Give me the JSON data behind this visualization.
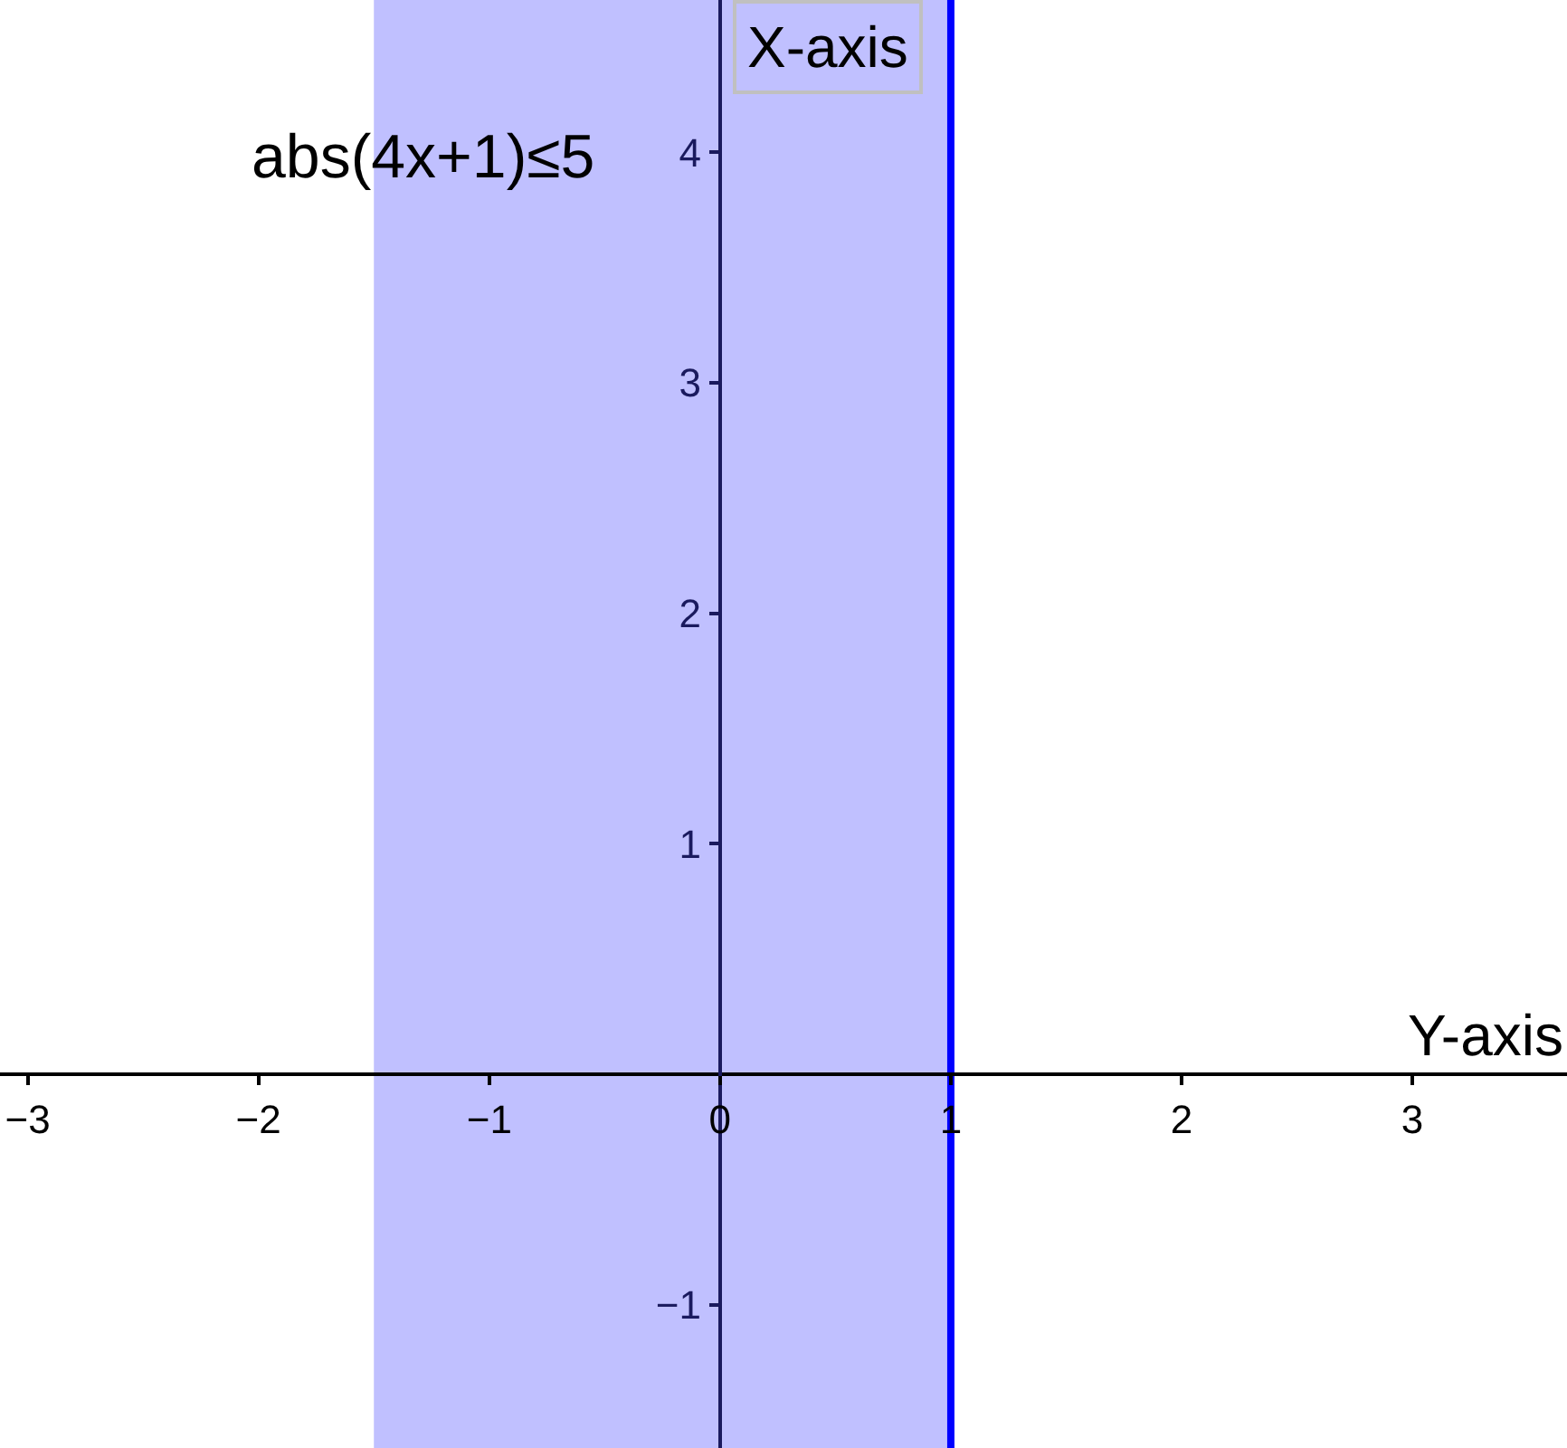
{
  "chart_data": {
    "type": "line",
    "xlabel": "Y-axis",
    "ylabel": "X-axis",
    "xlim": [
      -3.12,
      3.67
    ],
    "ylim": [
      -1.62,
      4.66
    ],
    "xticks": [
      -3,
      -2,
      -1,
      0,
      1,
      2,
      3
    ],
    "yticks": [
      -1,
      1,
      2,
      3,
      4
    ],
    "bands": [
      {
        "axis": "x",
        "from": -1.5,
        "to": 1,
        "label": "abs(4x+1)≤5",
        "color": "#c0c0ff"
      }
    ],
    "ref_lines": [
      {
        "axis": "x",
        "value": 1,
        "color": "#0000ff"
      }
    ]
  }
}
